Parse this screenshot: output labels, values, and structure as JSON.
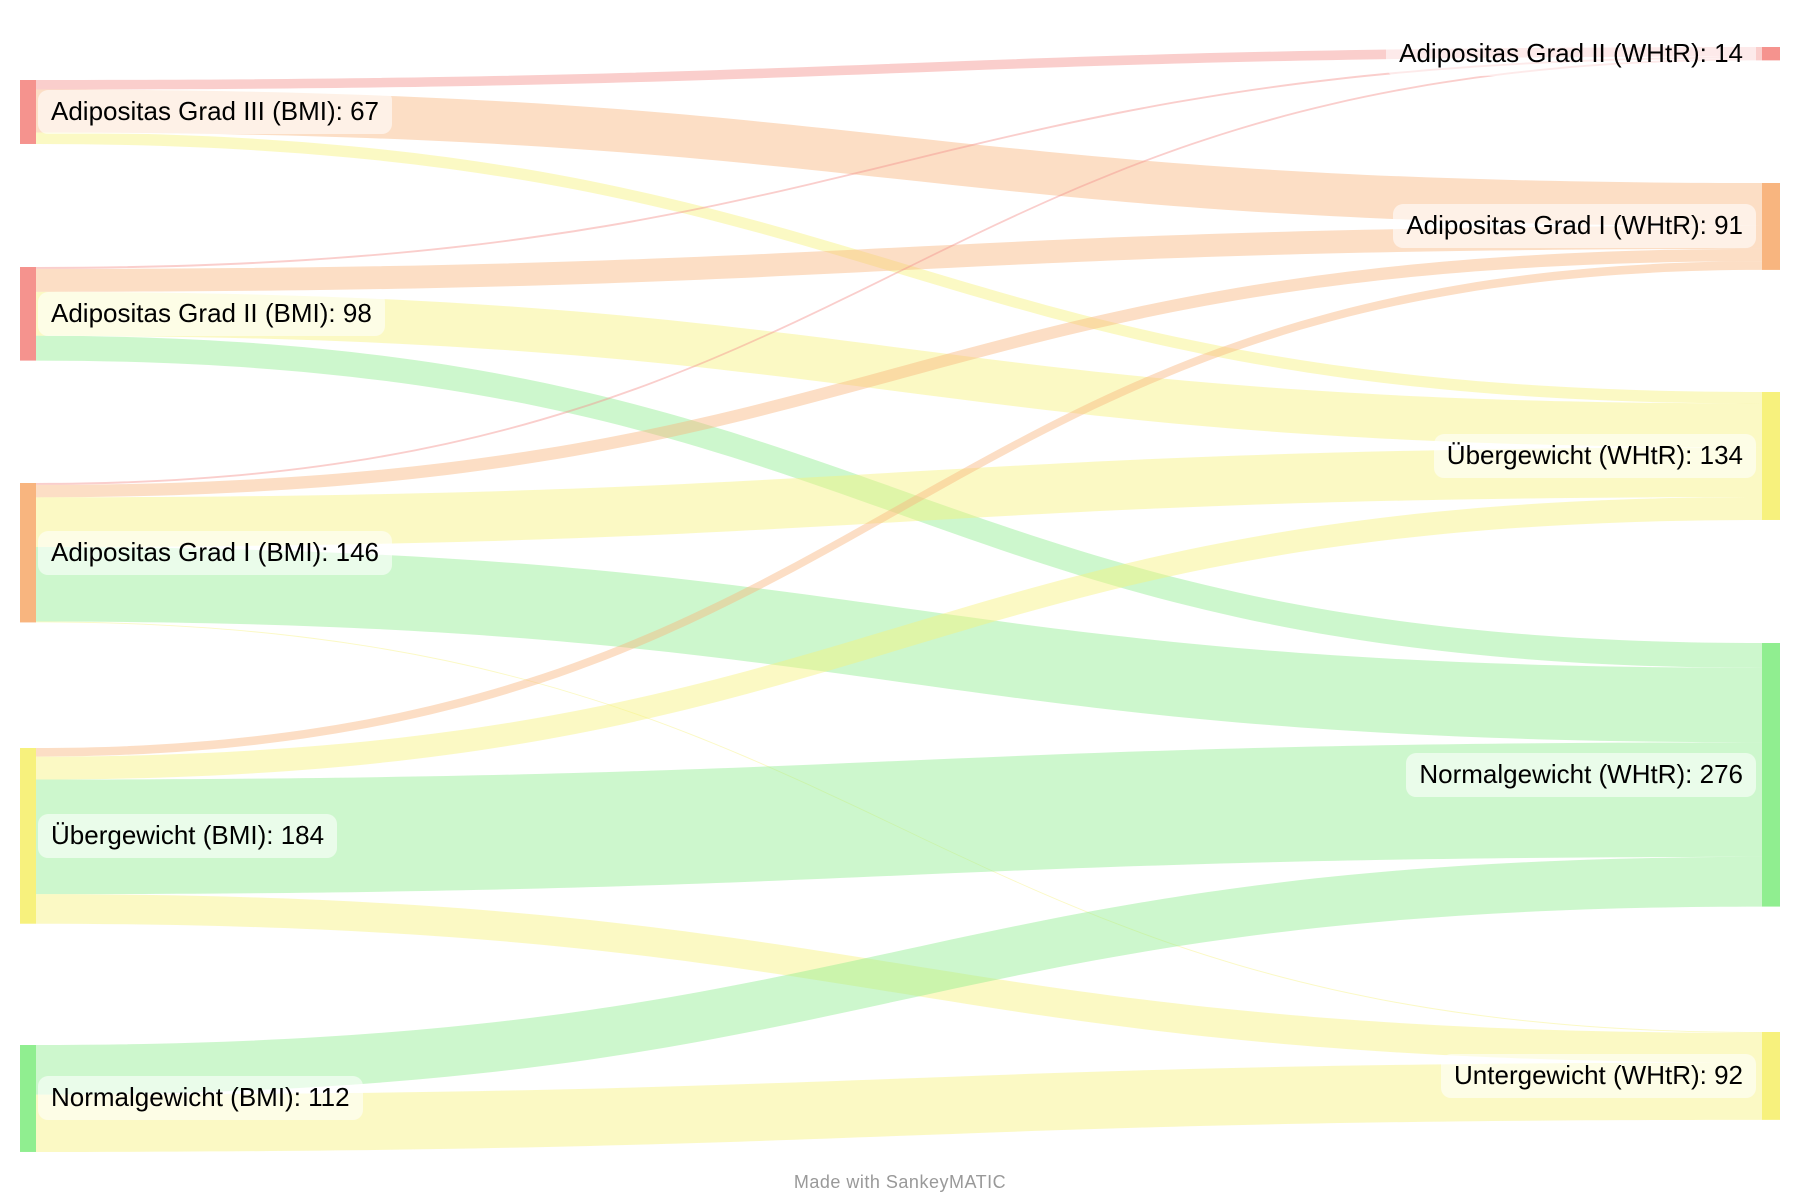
{
  "chart_data": {
    "type": "sankey",
    "title": "",
    "total_units": 607,
    "label_format": "{label}: {value}",
    "legend_position": "none",
    "nodes": {
      "left": [
        {
          "id": "bmi-adipositas-3",
          "label": "Adipositas Grad III (BMI)",
          "value": 67,
          "color": "#f5938e"
        },
        {
          "id": "bmi-adipositas-2",
          "label": "Adipositas Grad II (BMI)",
          "value": 98,
          "color": "#f5938e"
        },
        {
          "id": "bmi-adipositas-1",
          "label": "Adipositas Grad I (BMI)",
          "value": 146,
          "color": "#f8b57f"
        },
        {
          "id": "bmi-uebergewicht",
          "label": "Übergewicht (BMI)",
          "value": 184,
          "color": "#f7f17d"
        },
        {
          "id": "bmi-normalgewicht",
          "label": "Normalgewicht (BMI)",
          "value": 112,
          "color": "#90ee90"
        }
      ],
      "right": [
        {
          "id": "whtr-adipositas-2",
          "label": "Adipositas Grad II (WHtR)",
          "value": 14,
          "color": "#f5938e"
        },
        {
          "id": "whtr-adipositas-1",
          "label": "Adipositas Grad I (WHtR)",
          "value": 91,
          "color": "#f8b57f"
        },
        {
          "id": "whtr-uebergewicht",
          "label": "Übergewicht (WHtR)",
          "value": 134,
          "color": "#f7f17d"
        },
        {
          "id": "whtr-normalgewicht",
          "label": "Normalgewicht (WHtR)",
          "value": 276,
          "color": "#90ee90"
        },
        {
          "id": "whtr-untergewicht",
          "label": "Untergewicht (WHtR)",
          "value": 92,
          "color": "#f7f17d"
        }
      ]
    },
    "flows": [
      {
        "from": "bmi-adipositas-3",
        "to": "whtr-adipositas-2",
        "value": 10
      },
      {
        "from": "bmi-adipositas-3",
        "to": "whtr-adipositas-1",
        "value": 45
      },
      {
        "from": "bmi-adipositas-3",
        "to": "whtr-uebergewicht",
        "value": 12
      },
      {
        "from": "bmi-adipositas-2",
        "to": "whtr-adipositas-2",
        "value": 2
      },
      {
        "from": "bmi-adipositas-2",
        "to": "whtr-adipositas-1",
        "value": 24
      },
      {
        "from": "bmi-adipositas-2",
        "to": "whtr-uebergewicht",
        "value": 46
      },
      {
        "from": "bmi-adipositas-2",
        "to": "whtr-normalgewicht",
        "value": 26
      },
      {
        "from": "bmi-adipositas-1",
        "to": "whtr-adipositas-2",
        "value": 2
      },
      {
        "from": "bmi-adipositas-1",
        "to": "whtr-adipositas-1",
        "value": 13
      },
      {
        "from": "bmi-adipositas-1",
        "to": "whtr-uebergewicht",
        "value": 52
      },
      {
        "from": "bmi-adipositas-1",
        "to": "whtr-normalgewicht",
        "value": 78
      },
      {
        "from": "bmi-adipositas-1",
        "to": "whtr-untergewicht",
        "value": 1
      },
      {
        "from": "bmi-uebergewicht",
        "to": "whtr-adipositas-1",
        "value": 9
      },
      {
        "from": "bmi-uebergewicht",
        "to": "whtr-uebergewicht",
        "value": 24
      },
      {
        "from": "bmi-uebergewicht",
        "to": "whtr-normalgewicht",
        "value": 120
      },
      {
        "from": "bmi-uebergewicht",
        "to": "whtr-untergewicht",
        "value": 31
      },
      {
        "from": "bmi-normalgewicht",
        "to": "whtr-normalgewicht",
        "value": 52
      },
      {
        "from": "bmi-normalgewicht",
        "to": "whtr-untergewicht",
        "value": 60
      }
    ]
  },
  "footer": {
    "credit": "Made with SankeyMATIC"
  }
}
